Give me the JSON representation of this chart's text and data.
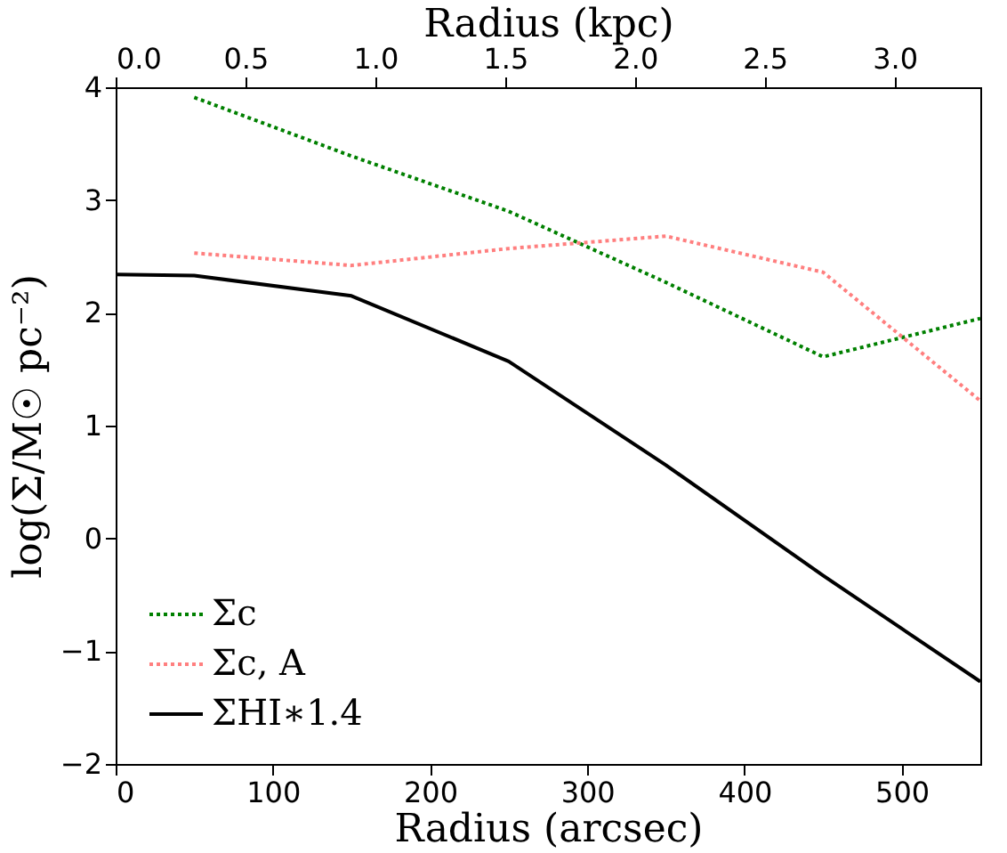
{
  "chart_data": {
    "type": "line",
    "xlabel": "Radius (arcsec)",
    "ylabel": "log(Σ/M☉ pc⁻²)",
    "x2label": "Radius (kpc)",
    "xlim": [
      0,
      550
    ],
    "xticks": [
      0,
      100,
      200,
      300,
      400,
      500
    ],
    "ylim": [
      -2,
      4
    ],
    "yticks": [
      -2,
      -1,
      0,
      1,
      2,
      3,
      4
    ],
    "x2lim": [
      0,
      3.33
    ],
    "x2ticks": [
      {
        "value": 0,
        "label": "0.0"
      },
      0.5,
      {
        "value": 1,
        "label": "1.0"
      },
      1.5,
      {
        "value": 2,
        "label": "2.0"
      },
      2.5,
      {
        "value": 3,
        "label": "3.0"
      }
    ],
    "grid": false,
    "legend": "bottom left",
    "series": [
      {
        "name": "Σc",
        "color": "#008000",
        "line_style": "dotted",
        "x": [
          50,
          150,
          250,
          350,
          450,
          550
        ],
        "values": [
          3.91,
          3.39,
          2.9,
          2.27,
          1.61,
          1.95
        ]
      },
      {
        "name": "Σc, A",
        "color": "#ff7f7f",
        "line_style": "dotted",
        "x": [
          50,
          150,
          250,
          350,
          450,
          550
        ],
        "values": [
          2.53,
          2.42,
          2.57,
          2.68,
          2.36,
          1.22
        ]
      },
      {
        "name": "ΣHI∗1.4",
        "color": "#000000",
        "line_style": "solid",
        "x": [
          0,
          50,
          150,
          250,
          350,
          450,
          550
        ],
        "values": [
          2.34,
          2.33,
          2.15,
          1.57,
          0.65,
          -0.33,
          -1.27
        ]
      }
    ]
  }
}
